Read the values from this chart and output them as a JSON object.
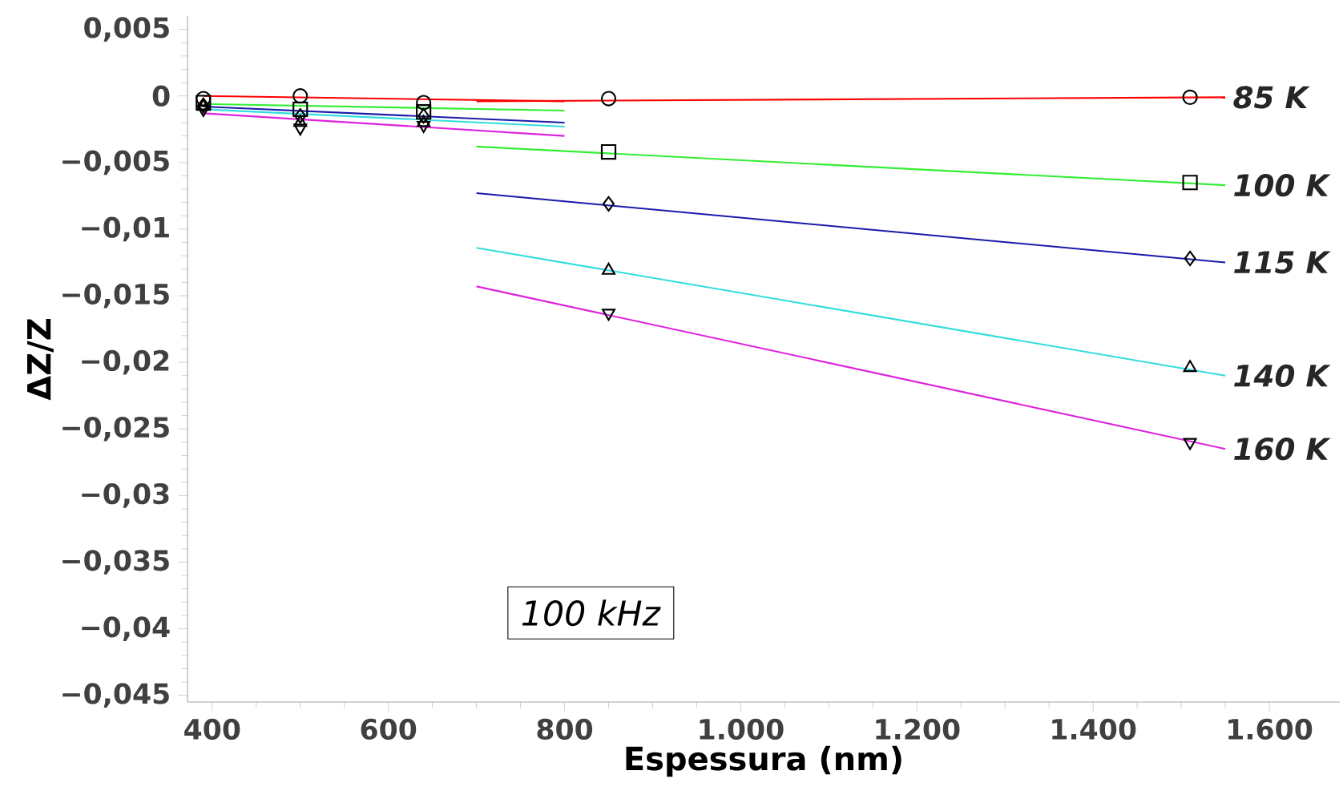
{
  "chart_data": {
    "type": "line",
    "xlabel": "Espessura (nm)",
    "ylabel": "ΔZ/Z",
    "annotations": [
      "*100 kHz*"
    ],
    "xlim": [
      372,
      1680
    ],
    "ylim": [
      -0.0455,
      0.006
    ],
    "xticks": [
      400,
      600,
      800,
      {
        "value": 1000,
        "label": "1.000"
      },
      {
        "value": 1200,
        "label": "1.200"
      },
      {
        "value": 1400,
        "label": "1.400"
      },
      {
        "value": 1600,
        "label": "1.600"
      }
    ],
    "yticks": [
      {
        "value": 0.005,
        "label": "0,005"
      },
      0,
      {
        "value": -0.005,
        "label": "−0,005"
      },
      {
        "value": -0.01,
        "label": "−0,01"
      },
      {
        "value": -0.015,
        "label": "−0,015"
      },
      {
        "value": -0.02,
        "label": "−0,02"
      },
      {
        "value": -0.025,
        "label": "−0,025"
      },
      {
        "value": -0.03,
        "label": "−0,03"
      },
      {
        "value": -0.035,
        "label": "−0,035"
      },
      {
        "value": -0.04,
        "label": "−0,04"
      },
      {
        "value": -0.045,
        "label": "−0,045"
      }
    ],
    "grid": false,
    "series": [
      {
        "type": "scatter",
        "marker": "circle",
        "color": "#000000",
        "x": [
          390,
          500,
          640,
          850,
          1510
        ],
        "values": [
          -0.0002,
          0,
          -0.0005,
          -0.0002,
          -0.0001
        ]
      },
      {
        "type": "scatter",
        "marker": "square",
        "color": "#000000",
        "x": [
          390,
          500,
          640,
          850,
          1510
        ],
        "values": [
          -0.0005,
          -0.001,
          -0.0012,
          -0.0042,
          -0.0065
        ]
      },
      {
        "type": "scatter",
        "marker": "diamond",
        "color": "#000000",
        "x": [
          390,
          500,
          640,
          850,
          1510
        ],
        "values": [
          -0.0007,
          -0.0015,
          -0.0015,
          -0.0081,
          -0.0122
        ]
      },
      {
        "type": "scatter",
        "marker": "triangle",
        "color": "#000000",
        "x": [
          390,
          500,
          640,
          850,
          1510
        ],
        "values": [
          -0.0008,
          -0.002,
          -0.002,
          -0.0131,
          -0.0204
        ]
      },
      {
        "type": "scatter",
        "marker": "triangle_down",
        "color": "#000000",
        "x": [
          390,
          500,
          640,
          850,
          1510
        ],
        "values": [
          -0.001,
          -0.0024,
          -0.0022,
          -0.0163,
          -0.026
        ]
      },
      {
        "color": "#ff0000",
        "x": [
          390,
          800
        ],
        "values": [
          0,
          -0.0004
        ]
      },
      {
        "color": "#33ee33",
        "x": [
          390,
          800
        ],
        "values": [
          -0.0006,
          -0.0011
        ]
      },
      {
        "color": "#1a1aaa",
        "x": [
          390,
          800
        ],
        "values": [
          -0.0008,
          -0.002
        ]
      },
      {
        "color": "#33dddd",
        "x": [
          390,
          800
        ],
        "values": [
          -0.001,
          -0.0023
        ]
      },
      {
        "color": "#dd22dd",
        "x": [
          390,
          800
        ],
        "values": [
          -0.0013,
          -0.003
        ]
      },
      {
        "name": "85 K",
        "color": "#ff0000",
        "x": [
          700,
          1550
        ],
        "values": [
          -0.0004,
          -0.0001
        ]
      },
      {
        "name": "100 K",
        "color": "#33ee33",
        "x": [
          700,
          1550
        ],
        "values": [
          -0.0038,
          -0.0067
        ]
      },
      {
        "name": "115 K",
        "color": "#1a1aaa",
        "x": [
          700,
          1550
        ],
        "values": [
          -0.0073,
          -0.0125
        ]
      },
      {
        "name": "140 K",
        "color": "#33dddd",
        "x": [
          700,
          1550
        ],
        "values": [
          -0.0114,
          -0.021
        ]
      },
      {
        "name": "160 K",
        "color": "#dd22dd",
        "x": [
          700,
          1550
        ],
        "values": [
          -0.0143,
          -0.0265
        ]
      }
    ]
  }
}
